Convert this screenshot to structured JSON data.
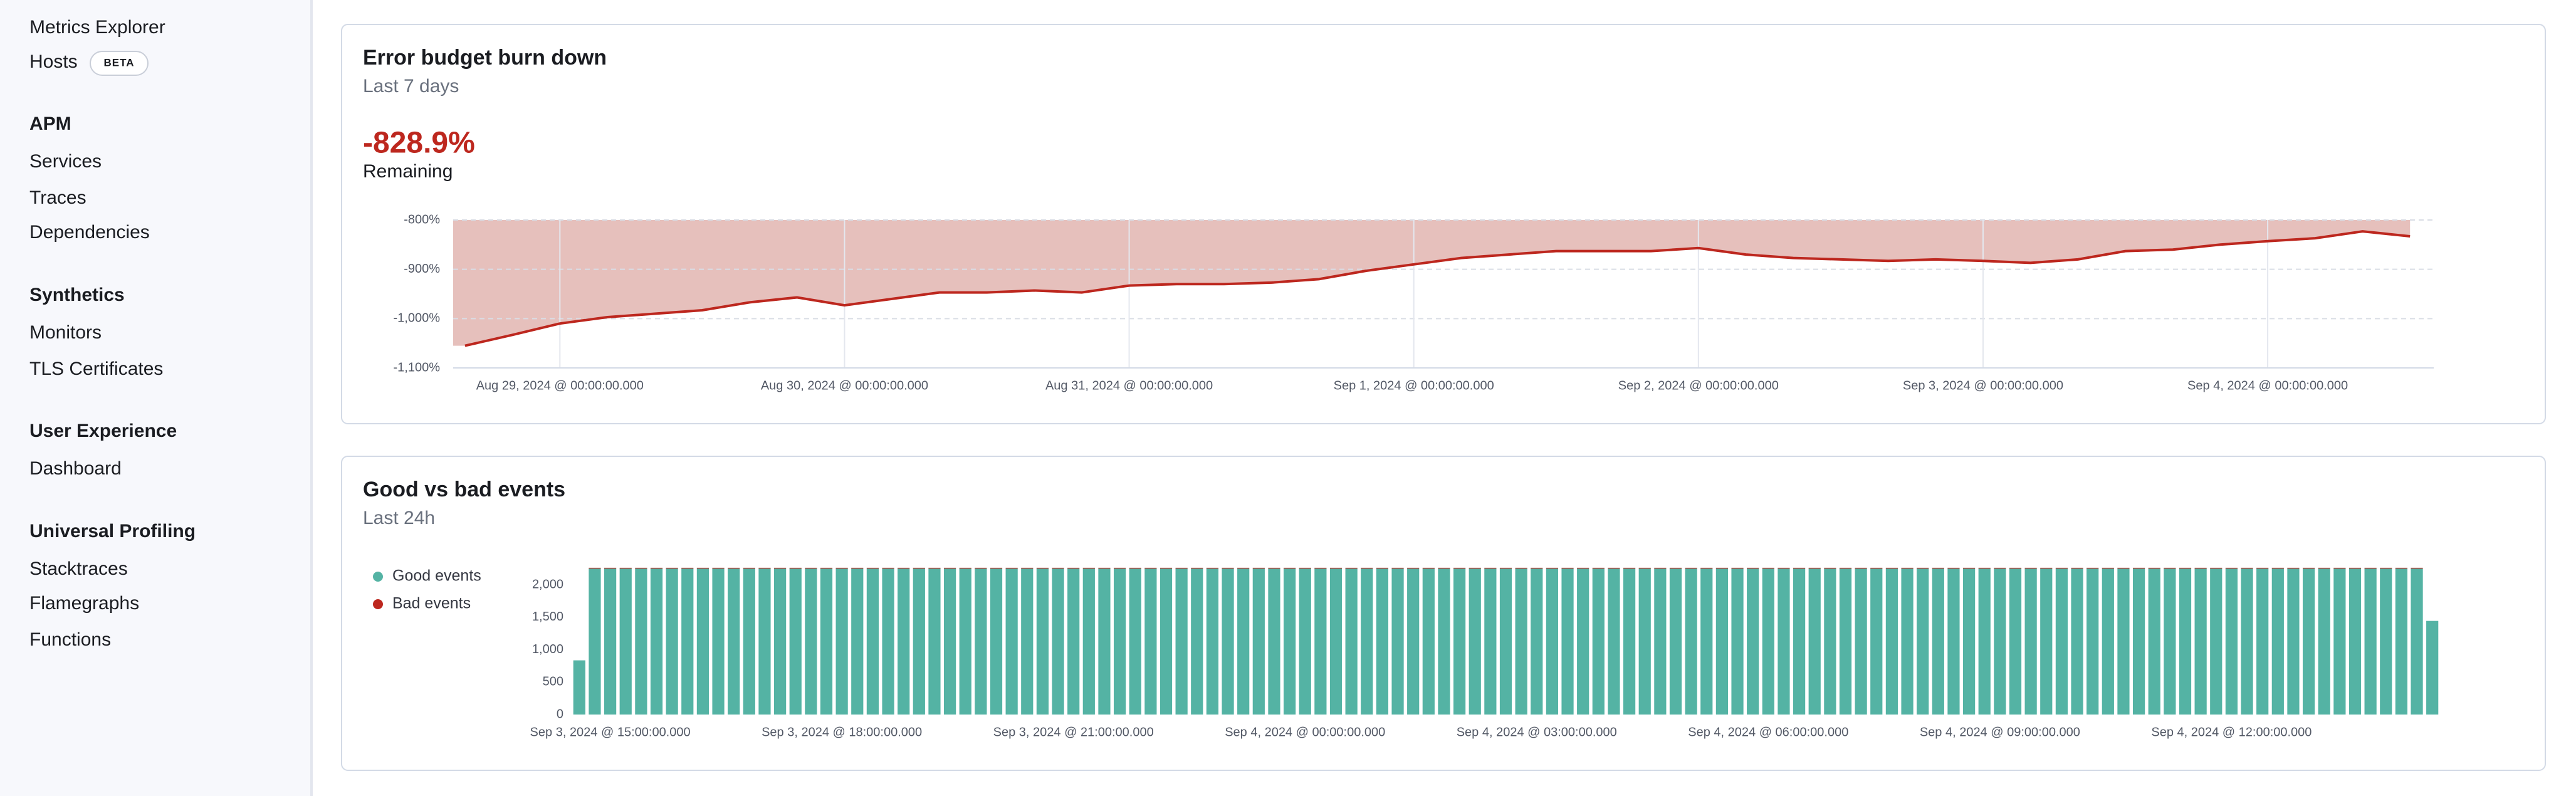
{
  "sidebar": {
    "top_items": [
      "Metrics Explorer"
    ],
    "hosts": {
      "label": "Hosts",
      "badge": "BETA"
    },
    "sections": [
      {
        "title": "APM",
        "items": [
          "Services",
          "Traces",
          "Dependencies"
        ]
      },
      {
        "title": "Synthetics",
        "items": [
          "Monitors",
          "TLS Certificates"
        ]
      },
      {
        "title": "User Experience",
        "items": [
          "Dashboard"
        ]
      },
      {
        "title": "Universal Profiling",
        "items": [
          "Stacktraces",
          "Flamegraphs",
          "Functions"
        ]
      }
    ]
  },
  "chart_data": [
    {
      "type": "area",
      "title": "Error budget burn down",
      "subtitle": "Last 7 days",
      "headline": "-828.9%",
      "headline_label": "Remaining",
      "color": "#bd271e",
      "fill": "#e6c0bc",
      "x": [
        "Aug 28, 2024 @ 16:00:00.000",
        "Aug 28, 2024 @ 20:00:00.000",
        "Aug 29, 2024 @ 00:00:00.000",
        "Aug 29, 2024 @ 04:00:00.000",
        "Aug 29, 2024 @ 08:00:00.000",
        "Aug 29, 2024 @ 12:00:00.000",
        "Aug 29, 2024 @ 16:00:00.000",
        "Aug 29, 2024 @ 20:00:00.000",
        "Aug 30, 2024 @ 00:00:00.000",
        "Aug 30, 2024 @ 04:00:00.000",
        "Aug 30, 2024 @ 08:00:00.000",
        "Aug 30, 2024 @ 12:00:00.000",
        "Aug 30, 2024 @ 16:00:00.000",
        "Aug 30, 2024 @ 20:00:00.000",
        "Aug 31, 2024 @ 00:00:00.000",
        "Aug 31, 2024 @ 04:00:00.000",
        "Aug 31, 2024 @ 08:00:00.000",
        "Aug 31, 2024 @ 12:00:00.000",
        "Aug 31, 2024 @ 16:00:00.000",
        "Aug 31, 2024 @ 20:00:00.000",
        "Sep 1, 2024 @ 00:00:00.000",
        "Sep 1, 2024 @ 04:00:00.000",
        "Sep 1, 2024 @ 08:00:00.000",
        "Sep 1, 2024 @ 12:00:00.000",
        "Sep 1, 2024 @ 16:00:00.000",
        "Sep 1, 2024 @ 20:00:00.000",
        "Sep 2, 2024 @ 00:00:00.000",
        "Sep 2, 2024 @ 04:00:00.000",
        "Sep 2, 2024 @ 08:00:00.000",
        "Sep 2, 2024 @ 12:00:00.000",
        "Sep 2, 2024 @ 16:00:00.000",
        "Sep 2, 2024 @ 20:00:00.000",
        "Sep 3, 2024 @ 00:00:00.000",
        "Sep 3, 2024 @ 04:00:00.000",
        "Sep 3, 2024 @ 08:00:00.000",
        "Sep 3, 2024 @ 12:00:00.000",
        "Sep 3, 2024 @ 16:00:00.000",
        "Sep 3, 2024 @ 20:00:00.000",
        "Sep 4, 2024 @ 00:00:00.000",
        "Sep 4, 2024 @ 04:00:00.000",
        "Sep 4, 2024 @ 08:00:00.000",
        "Sep 4, 2024 @ 12:00:00.000"
      ],
      "values": [
        -1055,
        -1033,
        -1010,
        -997,
        -990,
        -983,
        -967,
        -957,
        -973,
        -960,
        -947,
        -947,
        -943,
        -947,
        -933,
        -930,
        -930,
        -927,
        -920,
        -903,
        -890,
        -877,
        -870,
        -863,
        -863,
        -863,
        -857,
        -870,
        -877,
        -880,
        -883,
        -880,
        -883,
        -887,
        -880,
        -863,
        -860,
        -850,
        -843,
        -837,
        -823,
        -833
      ],
      "xlim": [
        "Aug 28, 2024 @ 15:00:00.000",
        "Sep 4, 2024 @ 14:00:00.000"
      ],
      "xticks": [
        "Aug 29, 2024 @ 00:00:00.000",
        "Aug 30, 2024 @ 00:00:00.000",
        "Aug 31, 2024 @ 00:00:00.000",
        "Sep 1, 2024 @ 00:00:00.000",
        "Sep 2, 2024 @ 00:00:00.000",
        "Sep 3, 2024 @ 00:00:00.000",
        "Sep 4, 2024 @ 00:00:00.000"
      ],
      "ylim": [
        -1100,
        -800
      ],
      "yticks": [
        {
          "value": -800,
          "label": "-800%"
        },
        {
          "value": -900,
          "label": "-900%"
        },
        {
          "value": -1000,
          "label": "-1,000%"
        },
        {
          "value": -1100,
          "label": "-1,100%"
        }
      ],
      "grid": true
    },
    {
      "type": "bar",
      "title": "Good vs bad events",
      "subtitle": "Last 24h",
      "stacked": true,
      "legend": "left",
      "categories": [
        null,
        null,
        "Sep 3, 2024 @ 15:00:00.000",
        null,
        null,
        null,
        null,
        null,
        null,
        null,
        null,
        null,
        null,
        null,
        null,
        null,
        null,
        "Sep 3, 2024 @ 18:00:00.000",
        null,
        null,
        null,
        null,
        null,
        null,
        null,
        null,
        null,
        null,
        null,
        null,
        null,
        null,
        "Sep 3, 2024 @ 21:00:00.000",
        null,
        null,
        null,
        null,
        null,
        null,
        null,
        null,
        null,
        null,
        null,
        null,
        null,
        null,
        "Sep 4, 2024 @ 00:00:00.000",
        null,
        null,
        null,
        null,
        null,
        null,
        null,
        null,
        null,
        null,
        null,
        null,
        null,
        null,
        "Sep 4, 2024 @ 03:00:00.000",
        null,
        null,
        null,
        null,
        null,
        null,
        null,
        null,
        null,
        null,
        null,
        null,
        null,
        null,
        "Sep 4, 2024 @ 06:00:00.000",
        null,
        null,
        null,
        null,
        null,
        null,
        null,
        null,
        null,
        null,
        null,
        null,
        null,
        null,
        "Sep 4, 2024 @ 09:00:00.000",
        null,
        null,
        null,
        null,
        null,
        null,
        null,
        null,
        null,
        null,
        null,
        null,
        null,
        null,
        "Sep 4, 2024 @ 12:00:00.000",
        null,
        null,
        null,
        null,
        null,
        null,
        null,
        null,
        null,
        null,
        null,
        null,
        null
      ],
      "series": [
        {
          "name": "Good events",
          "color": "#54b3a4",
          "values": [
            835,
            2250,
            2250,
            2250,
            2250,
            2250,
            2250,
            2250,
            2250,
            2250,
            2250,
            2250,
            2250,
            2250,
            2250,
            2250,
            2250,
            2250,
            2250,
            2250,
            2250,
            2250,
            2250,
            2250,
            2250,
            2250,
            2250,
            2250,
            2250,
            2250,
            2250,
            2250,
            2250,
            2250,
            2250,
            2250,
            2250,
            2250,
            2250,
            2250,
            2250,
            2250,
            2250,
            2250,
            2250,
            2250,
            2250,
            2250,
            2250,
            2250,
            2250,
            2250,
            2250,
            2250,
            2250,
            2250,
            2250,
            2250,
            2250,
            2250,
            2250,
            2250,
            2250,
            2250,
            2250,
            2250,
            2250,
            2250,
            2250,
            2250,
            2250,
            2250,
            2250,
            2250,
            2250,
            2250,
            2250,
            2250,
            2250,
            2250,
            2250,
            2250,
            2250,
            2250,
            2250,
            2250,
            2250,
            2250,
            2250,
            2250,
            2250,
            2250,
            2250,
            2250,
            2250,
            2250,
            2250,
            2250,
            2250,
            2250,
            2250,
            2250,
            2250,
            2250,
            2250,
            2250,
            2250,
            2250,
            2250,
            2250,
            2250,
            2250,
            2250,
            2250,
            2250,
            2250,
            2250,
            2250,
            2250,
            2250,
            1443
          ]
        },
        {
          "name": "Bad events",
          "color": "#bd271e",
          "values": [
            0,
            12,
            12,
            12,
            12,
            12,
            12,
            12,
            12,
            12,
            12,
            12,
            12,
            12,
            12,
            12,
            12,
            12,
            12,
            12,
            12,
            12,
            12,
            12,
            12,
            12,
            12,
            12,
            12,
            12,
            12,
            12,
            12,
            12,
            12,
            12,
            12,
            12,
            12,
            12,
            12,
            12,
            12,
            12,
            12,
            12,
            12,
            12,
            12,
            12,
            12,
            12,
            12,
            12,
            12,
            12,
            12,
            12,
            12,
            12,
            12,
            12,
            12,
            12,
            12,
            12,
            12,
            12,
            12,
            12,
            12,
            12,
            12,
            12,
            12,
            12,
            12,
            12,
            12,
            12,
            12,
            12,
            12,
            12,
            12,
            12,
            12,
            12,
            12,
            12,
            12,
            12,
            12,
            12,
            12,
            12,
            12,
            12,
            12,
            12,
            12,
            12,
            12,
            12,
            12,
            12,
            12,
            12,
            12,
            12,
            12,
            12,
            12,
            12,
            12,
            12,
            12,
            12,
            12,
            12,
            0
          ]
        }
      ],
      "ylim": [
        0,
        2280
      ],
      "yticks": [
        0,
        500,
        {
          "value": 1000,
          "label": "1,000"
        },
        {
          "value": 1500,
          "label": "1,500"
        },
        {
          "value": 2000,
          "label": "2,000"
        }
      ]
    }
  ]
}
